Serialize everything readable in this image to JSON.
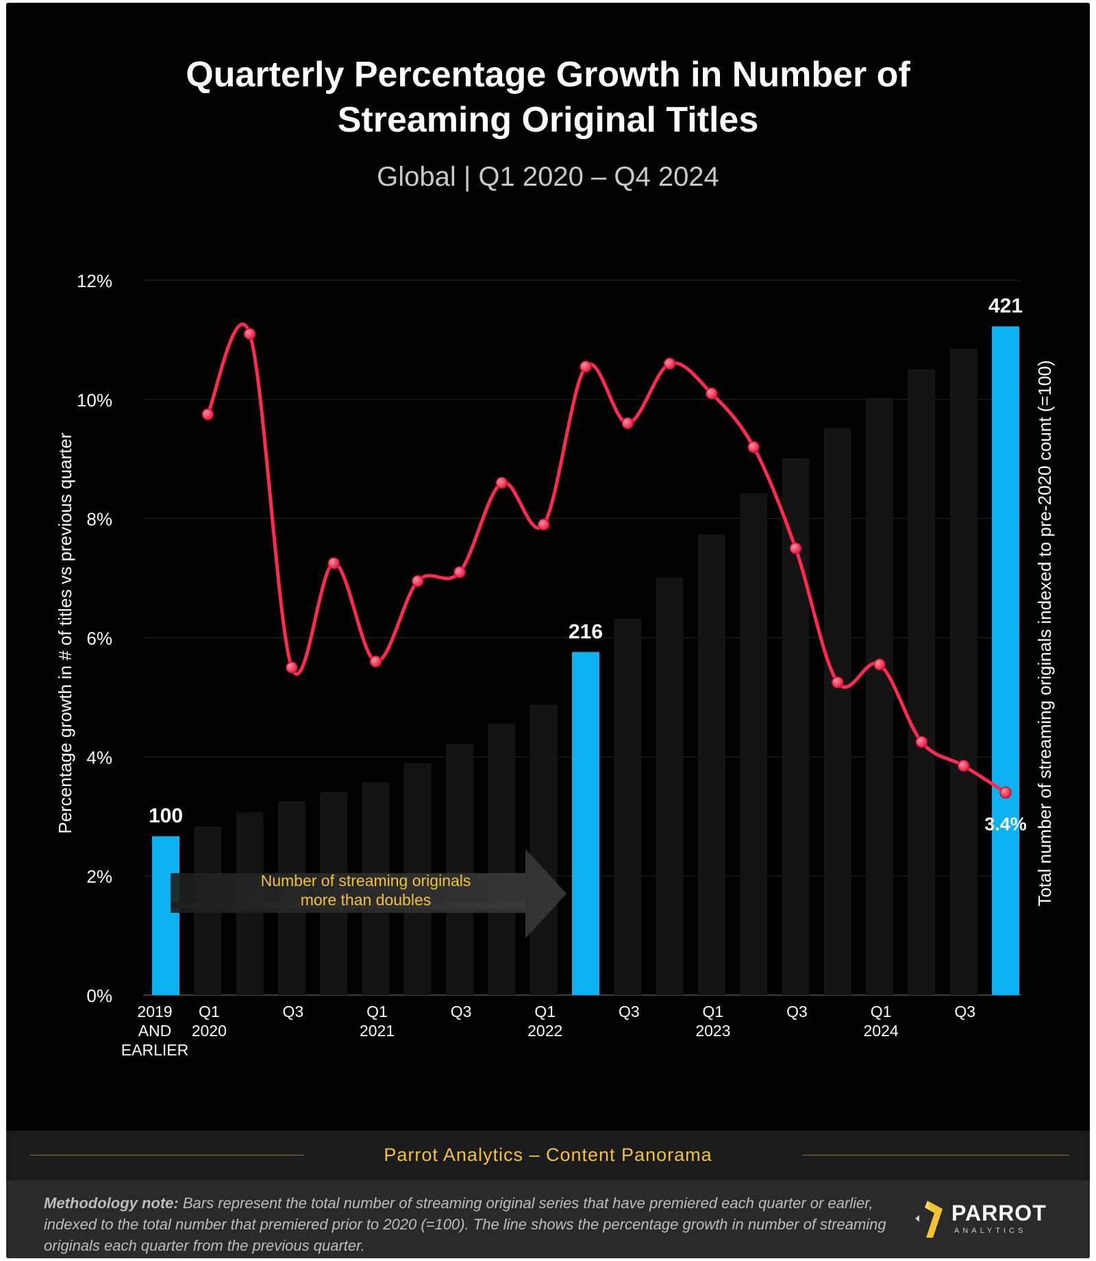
{
  "header": {
    "title_line1": "Quarterly Percentage Growth in Number of",
    "title_line2": "Streaming Original Titles",
    "subtitle": "Global  |  Q1 2020 – Q4 2024"
  },
  "chart_data": {
    "type": "bar+line",
    "left_axis": {
      "label": "Percentage growth in # of titles vs previous quarter",
      "ticks": [
        "0%",
        "2%",
        "4%",
        "6%",
        "8%",
        "10%",
        "12%"
      ],
      "range": [
        0,
        12
      ]
    },
    "right_axis": {
      "label": "Total number of streaming originals indexed to pre-2020 count (=100)",
      "range": [
        0,
        450
      ]
    },
    "x_labels": [
      [
        "2019",
        "AND",
        "EARLIER"
      ],
      [
        "Q1",
        "2020"
      ],
      [],
      [
        "Q3"
      ],
      [],
      [
        "Q1",
        "2021"
      ],
      [],
      [
        "Q3"
      ],
      [],
      [
        "Q1",
        "2022"
      ],
      [],
      [
        "Q3"
      ],
      [],
      [
        "Q1",
        "2023"
      ],
      [],
      [
        "Q3"
      ],
      [],
      [
        "Q1",
        "2024"
      ],
      [],
      [
        "Q3"
      ],
      []
    ],
    "bars": {
      "name": "Total number of streaming originals (index)",
      "values": [
        100,
        106,
        115,
        122,
        128,
        134,
        146,
        158,
        171,
        183,
        216,
        237,
        263,
        290,
        316,
        338,
        357,
        376,
        394,
        407,
        421
      ],
      "highlighted": [
        0,
        10,
        20
      ],
      "value_labels": {
        "0": "100",
        "10": "216",
        "20": "421"
      },
      "color": "#0db0f0",
      "dim_color": "#141414"
    },
    "line": {
      "name": "Quarterly percentage growth",
      "values": [
        null,
        9.75,
        11.1,
        5.5,
        7.25,
        5.6,
        6.95,
        7.1,
        8.6,
        7.9,
        10.55,
        9.6,
        10.6,
        10.1,
        9.2,
        7.5,
        5.25,
        5.55,
        4.25,
        3.85,
        3.4
      ],
      "end_label": "3.4%",
      "color": "#ff2a4f"
    },
    "annotation": {
      "line1": "Number of streaming originals",
      "line2": "more than doubles",
      "color": "#f2c335"
    }
  },
  "banner": {
    "text": "Parrot Analytics – Content Panorama"
  },
  "footer": {
    "method_label": "Methodology note:",
    "method_text": "Bars represent the total number of streaming original series that have premiered each quarter or earlier, indexed to the total number that premiered prior to 2020 (=100).  The line shows the percentage growth in number of streaming originals each quarter from the previous quarter.",
    "logo_word": "PARROT",
    "logo_sub": "ANALYTICS"
  }
}
